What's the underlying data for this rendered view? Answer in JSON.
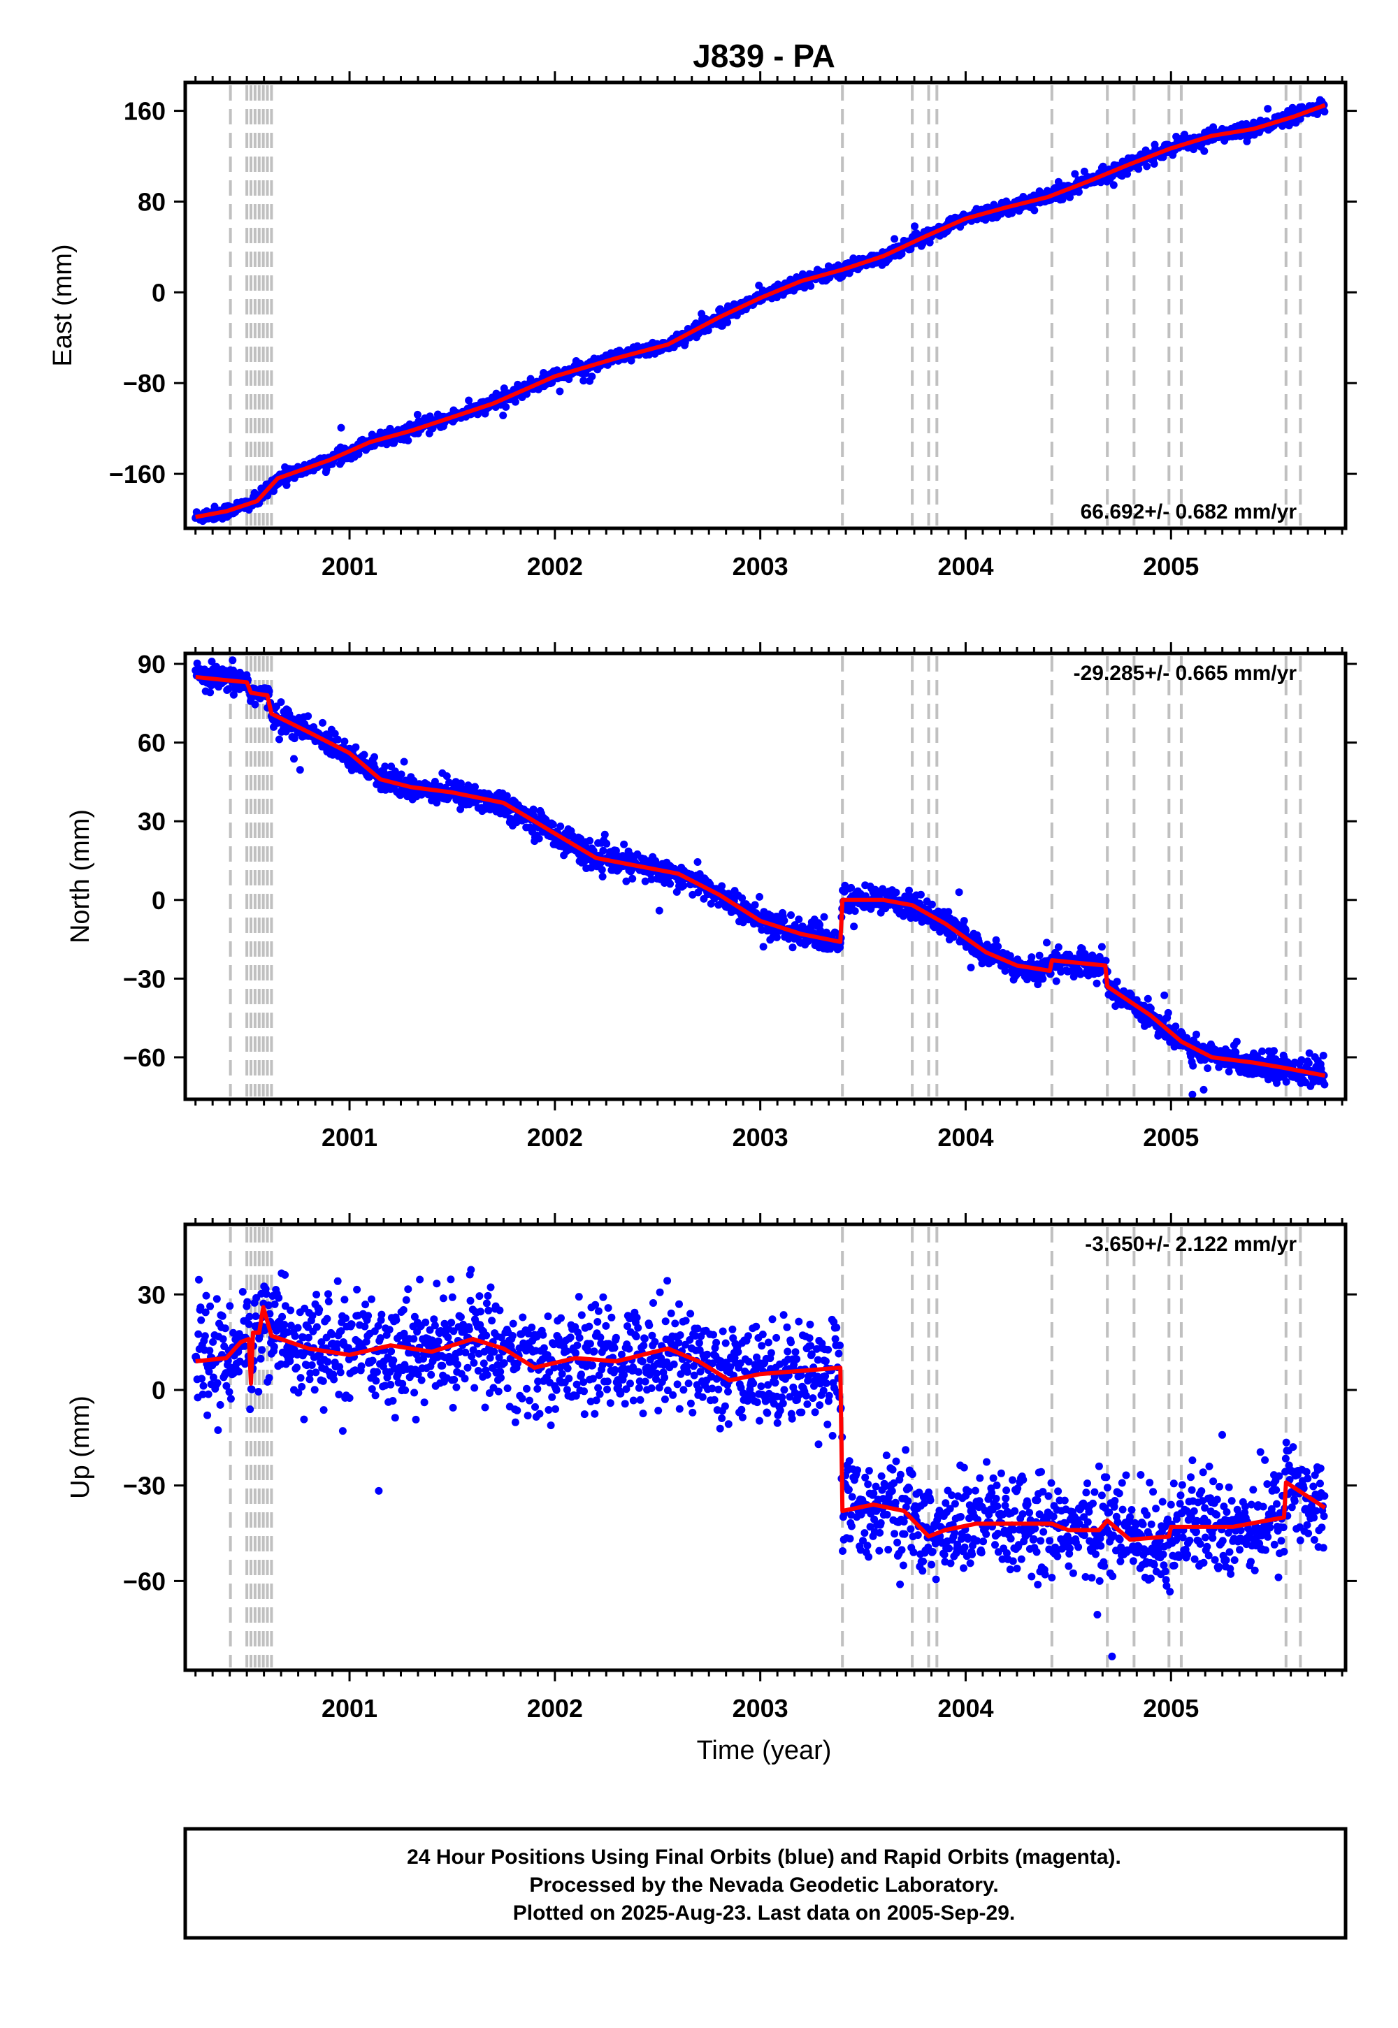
{
  "chart_data": {
    "type": "scatter",
    "title": "J839 - PA",
    "xlabel": "Time (year)",
    "x_ticks": [
      "2001",
      "2002",
      "2003",
      "2004",
      "2005"
    ],
    "xlim": [
      2000.2,
      2005.85
    ],
    "offset_epochs": [
      2000.42,
      2000.5,
      2000.52,
      2000.54,
      2000.56,
      2000.58,
      2000.6,
      2000.62,
      2003.4,
      2003.74,
      2003.82,
      2003.86,
      2004.42,
      2004.69,
      2004.82,
      2004.99,
      2005.05,
      2005.56,
      2005.63
    ],
    "series_colors": {
      "daily_positions": "#0000ff",
      "model": "#ff0000",
      "offsets": "#c0c0c0"
    },
    "panels": [
      {
        "component": "east",
        "ylabel": "East (mm)",
        "ylim": [
          -208,
          185
        ],
        "y_ticks": [
          160,
          80,
          0,
          -80,
          -160
        ],
        "y_tick_labels": [
          "160",
          "80",
          "0",
          "−80",
          "−160"
        ],
        "rate_text": "66.692+/- 0.682 mm/yr",
        "rate_position": "bottom-right",
        "noise_mm": 3,
        "model": [
          [
            2000.25,
            -198
          ],
          [
            2000.4,
            -193
          ],
          [
            2000.55,
            -184
          ],
          [
            2000.65,
            -164
          ],
          [
            2000.9,
            -148
          ],
          [
            2001.1,
            -132
          ],
          [
            2001.3,
            -122
          ],
          [
            2001.45,
            -113
          ],
          [
            2001.7,
            -98
          ],
          [
            2002.0,
            -74
          ],
          [
            2002.3,
            -58
          ],
          [
            2002.55,
            -46
          ],
          [
            2002.8,
            -22
          ],
          [
            2003.0,
            -5
          ],
          [
            2003.2,
            10
          ],
          [
            2003.4,
            20
          ],
          [
            2003.6,
            32
          ],
          [
            2003.8,
            49
          ],
          [
            2004.0,
            65
          ],
          [
            2004.2,
            75
          ],
          [
            2004.4,
            84
          ],
          [
            2004.6,
            98
          ],
          [
            2004.8,
            113
          ],
          [
            2005.0,
            127
          ],
          [
            2005.2,
            138
          ],
          [
            2005.4,
            144
          ],
          [
            2005.6,
            155
          ],
          [
            2005.75,
            165
          ]
        ]
      },
      {
        "component": "north",
        "ylabel": "North (mm)",
        "ylim": [
          -76,
          94
        ],
        "y_ticks": [
          90,
          60,
          30,
          0,
          -30,
          -60
        ],
        "y_tick_labels": [
          "90",
          "60",
          "30",
          "0",
          "−30",
          "−60"
        ],
        "rate_text": "-29.285+/- 0.665 mm/yr",
        "rate_position": "top-right",
        "noise_mm": 2.5,
        "model": [
          [
            2000.25,
            85
          ],
          [
            2000.5,
            83
          ],
          [
            2000.52,
            79
          ],
          [
            2000.6,
            78
          ],
          [
            2000.62,
            71
          ],
          [
            2000.8,
            64
          ],
          [
            2001.0,
            56
          ],
          [
            2001.15,
            46
          ],
          [
            2001.3,
            43
          ],
          [
            2001.5,
            41
          ],
          [
            2001.75,
            37
          ],
          [
            2001.9,
            30
          ],
          [
            2002.05,
            23
          ],
          [
            2002.2,
            16
          ],
          [
            2002.4,
            13
          ],
          [
            2002.6,
            10
          ],
          [
            2002.8,
            2
          ],
          [
            2003.0,
            -8
          ],
          [
            2003.2,
            -13
          ],
          [
            2003.39,
            -16
          ],
          [
            2003.4,
            0
          ],
          [
            2003.6,
            0
          ],
          [
            2003.74,
            -2
          ],
          [
            2003.9,
            -9
          ],
          [
            2004.1,
            -20
          ],
          [
            2004.25,
            -25
          ],
          [
            2004.41,
            -27
          ],
          [
            2004.42,
            -23
          ],
          [
            2004.68,
            -25
          ],
          [
            2004.69,
            -33
          ],
          [
            2004.9,
            -44
          ],
          [
            2005.05,
            -54
          ],
          [
            2005.2,
            -60
          ],
          [
            2005.4,
            -62
          ],
          [
            2005.55,
            -64
          ],
          [
            2005.75,
            -67
          ]
        ]
      },
      {
        "component": "up",
        "ylabel": "Up (mm)",
        "ylim": [
          -88,
          52
        ],
        "y_ticks": [
          30,
          0,
          -30,
          -60
        ],
        "y_tick_labels": [
          "30",
          "0",
          "−30",
          "−60"
        ],
        "rate_text": "-3.650+/- 2.122 mm/yr",
        "rate_position": "top-right",
        "noise_mm": 8,
        "model": [
          [
            2000.25,
            9
          ],
          [
            2000.4,
            10
          ],
          [
            2000.47,
            15
          ],
          [
            2000.51,
            16
          ],
          [
            2000.52,
            2
          ],
          [
            2000.53,
            18
          ],
          [
            2000.56,
            18
          ],
          [
            2000.58,
            26
          ],
          [
            2000.62,
            17
          ],
          [
            2000.8,
            13
          ],
          [
            2001.0,
            11
          ],
          [
            2001.2,
            14
          ],
          [
            2001.4,
            12
          ],
          [
            2001.6,
            16
          ],
          [
            2001.75,
            13
          ],
          [
            2001.9,
            7
          ],
          [
            2002.1,
            10
          ],
          [
            2002.3,
            9
          ],
          [
            2002.55,
            13
          ],
          [
            2002.7,
            9
          ],
          [
            2002.85,
            3
          ],
          [
            2003.0,
            5
          ],
          [
            2003.2,
            6
          ],
          [
            2003.39,
            7
          ],
          [
            2003.4,
            -38
          ],
          [
            2003.55,
            -36
          ],
          [
            2003.7,
            -38
          ],
          [
            2003.82,
            -46
          ],
          [
            2003.9,
            -44
          ],
          [
            2004.05,
            -42
          ],
          [
            2004.42,
            -42
          ],
          [
            2004.5,
            -44
          ],
          [
            2004.65,
            -44
          ],
          [
            2004.69,
            -41
          ],
          [
            2004.8,
            -47
          ],
          [
            2004.99,
            -46
          ],
          [
            2005.0,
            -43
          ],
          [
            2005.3,
            -43
          ],
          [
            2005.55,
            -40
          ],
          [
            2005.56,
            -29
          ],
          [
            2005.75,
            -37
          ]
        ]
      }
    ],
    "footer_lines": [
      "24 Hour Positions Using Final Orbits (blue) and Rapid Orbits (magenta).",
      "Processed by the Nevada Geodetic Laboratory.",
      "Plotted on 2025-Aug-23. Last data on 2005-Sep-29."
    ]
  }
}
